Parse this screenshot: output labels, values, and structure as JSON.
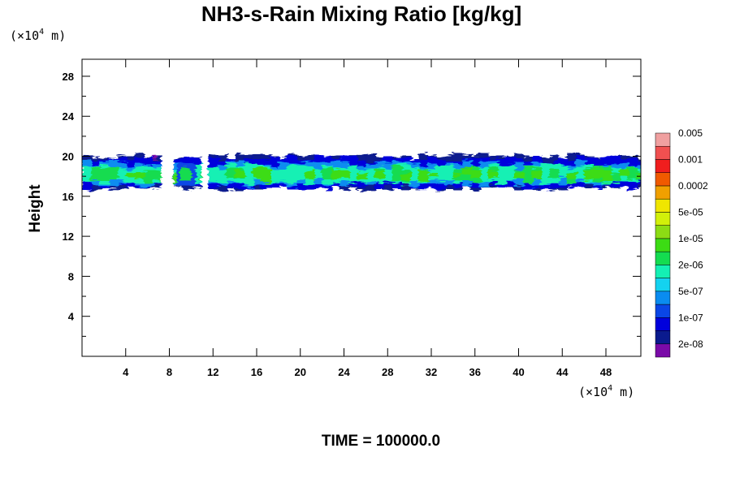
{
  "chart_data": {
    "type": "heatmap",
    "title": "NH3-s-Rain Mixing Ratio [kg/kg]",
    "ylabel": "Height",
    "axis_unit": {
      "prefix": "(×10",
      "exponent": "4",
      "suffix": " m)"
    },
    "x_ticks": [
      "4",
      "8",
      "12",
      "16",
      "20",
      "24",
      "28",
      "32",
      "36",
      "40",
      "44",
      "48"
    ],
    "x_tick_values": [
      4,
      8,
      12,
      16,
      20,
      24,
      28,
      32,
      36,
      40,
      44,
      48
    ],
    "y_ticks": [
      "4",
      "8",
      "12",
      "16",
      "20",
      "24",
      "28"
    ],
    "y_tick_values": [
      4,
      8,
      12,
      16,
      20,
      24,
      28
    ],
    "xlim": [
      0,
      51.2
    ],
    "ylim": [
      0,
      29.7
    ],
    "layer": {
      "bottom_km": 16.8,
      "top_km": 20.0
    },
    "colorbar": {
      "colors": [
        "#7a0aa8",
        "#0a1a8e",
        "#0000dc",
        "#0a46e6",
        "#0a8cf0",
        "#14d2f0",
        "#14f0b4",
        "#14dc50",
        "#3cdc14",
        "#8cdc14",
        "#d2f00a",
        "#f0e600",
        "#f0a000",
        "#f05a00",
        "#f01e1e",
        "#f05050",
        "#f0a0a0"
      ],
      "labels": [
        "2e-08",
        "1e-07",
        "5e-07",
        "2e-06",
        "1e-05",
        "5e-05",
        "0.0002",
        "0.001",
        "0.005"
      ]
    },
    "footer": "TIME = 100000.0"
  }
}
